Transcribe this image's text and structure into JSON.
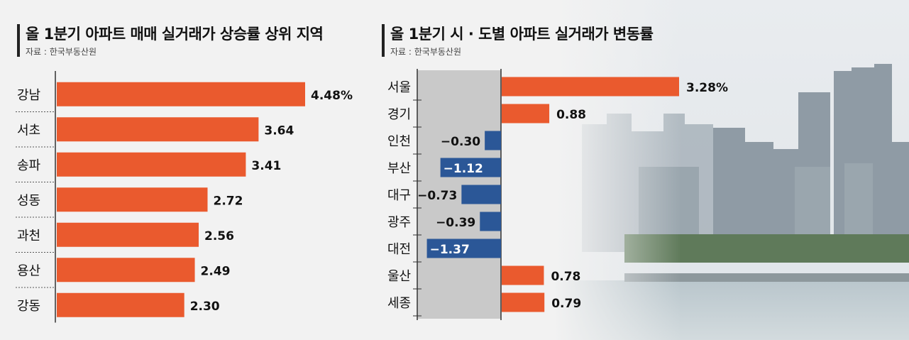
{
  "left_chart": {
    "title": "올 1분기 아파트 매매 실거래가 상승률 상위 지역",
    "source": "자료 : 한국부동산원"
  },
  "right_chart": {
    "title": "올 1분기 시 · 도별 아파트 실거래가 변동률",
    "source": "자료 : 한국부동산원"
  },
  "colors": {
    "positive": "#ea5a2e",
    "negative": "#2b5797",
    "text": "#111111"
  },
  "chart_data": [
    {
      "type": "bar",
      "orientation": "horizontal",
      "title": "올 1분기 아파트 매매 실거래가 상승률 상위 지역",
      "categories": [
        "강남",
        "서초",
        "송파",
        "성동",
        "과천",
        "용산",
        "강동"
      ],
      "values": [
        4.48,
        3.64,
        3.41,
        2.72,
        2.56,
        2.49,
        2.3
      ],
      "labels": [
        "4.48%",
        "3.64",
        "3.41",
        "2.72",
        "2.56",
        "2.49",
        "2.30"
      ],
      "unit": "%",
      "xlim": [
        0,
        5
      ]
    },
    {
      "type": "bar",
      "orientation": "horizontal",
      "title": "올 1분기 시 · 도별 아파트 실거래가 변동률",
      "categories": [
        "서울",
        "경기",
        "인천",
        "부산",
        "대구",
        "광주",
        "대전",
        "울산",
        "세종"
      ],
      "values": [
        3.28,
        0.88,
        -0.3,
        -1.12,
        -0.73,
        -0.39,
        -1.37,
        0.78,
        0.79
      ],
      "labels": [
        "3.28%",
        "0.88",
        "−0.30",
        "−1.12",
        "−0.73",
        "−0.39",
        "−1.37",
        "0.78",
        "0.79"
      ],
      "unit": "%",
      "xlim": [
        -1.5,
        3.5
      ]
    }
  ]
}
